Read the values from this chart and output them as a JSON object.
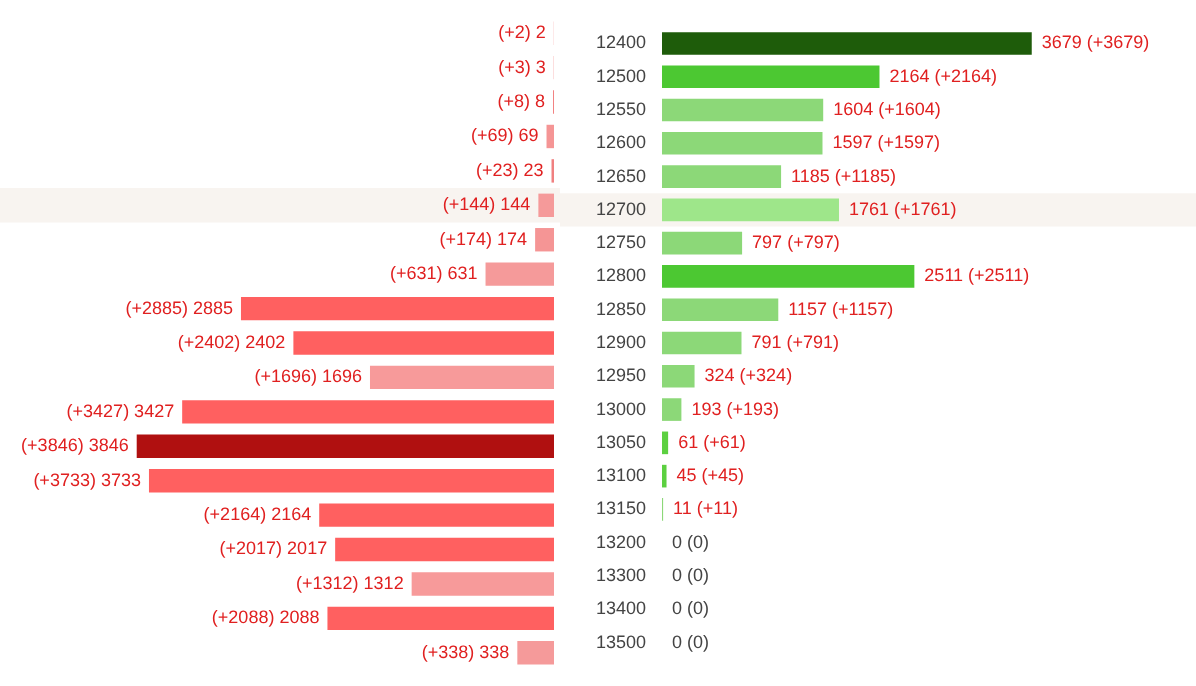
{
  "chart_data": [
    {
      "type": "bar",
      "orientation": "horizontal",
      "categories": [
        "12400",
        "12500",
        "12550",
        "12600",
        "12650",
        "12700",
        "12750",
        "12800",
        "12850",
        "12900",
        "12950",
        "13000",
        "13050",
        "13100",
        "13150",
        "13200",
        "13300",
        "13400",
        "13500"
      ],
      "values": [
        2,
        3,
        8,
        69,
        23,
        144,
        174,
        631,
        2885,
        2402,
        1696,
        3427,
        3846,
        3733,
        2164,
        2017,
        1312,
        2088,
        338
      ],
      "colors": [
        "#f59a9a",
        "#f59a9a",
        "#f07070",
        "#f59595",
        "#f08080",
        "#f59a9a",
        "#f59595",
        "#f59a9a",
        "#ff6060",
        "#ff6060",
        "#f79a9a",
        "#ff6060",
        "#b01010",
        "#ff6060",
        "#ff6060",
        "#ff6060",
        "#f79a9a",
        "#ff6060",
        "#f59a9a"
      ],
      "value_labels": [
        "(+2) 2",
        "(+3) 3",
        "(+8) 8",
        "(+69) 69",
        "(+23) 23",
        "(+144) 144",
        "(+174) 174",
        "(+631) 631",
        "(+2885) 2885",
        "(+2402) 2402",
        "(+1696) 1696",
        "(+3427) 3427",
        "(+3846) 3846",
        "(+3733) 3733",
        "(+2164) 2164",
        "(+2017) 2017",
        "(+1312) 1312",
        "(+2088) 2088",
        "(+338) 338"
      ],
      "tick_labels": false,
      "bands": [
        {
          "axis": "y",
          "from": "12700",
          "to": "12700",
          "color": "#f8f4f0"
        }
      ]
    },
    {
      "type": "bar",
      "orientation": "horizontal",
      "categories": [
        "12400",
        "12500",
        "12550",
        "12600",
        "12650",
        "12700",
        "12750",
        "12800",
        "12850",
        "12900",
        "12950",
        "13000",
        "13050",
        "13100",
        "13150",
        "13200",
        "13300",
        "13400",
        "13500"
      ],
      "values": [
        3679,
        2164,
        1604,
        1597,
        1185,
        1761,
        797,
        2511,
        1157,
        791,
        324,
        193,
        61,
        45,
        11,
        0,
        0,
        0,
        0
      ],
      "colors": [
        "#1e5c0a",
        "#4cc832",
        "#8cd878",
        "#8cd878",
        "#8cd878",
        "#9ee68a",
        "#8cd878",
        "#4cc832",
        "#8cd878",
        "#8cd878",
        "#8cd878",
        "#8cd878",
        "#5cd040",
        "#5cd040",
        "#8cd878",
        "#8cd878",
        "#8cd878",
        "#8cd878",
        "#8cd878"
      ],
      "value_labels": [
        "3679 (+3679)",
        "2164 (+2164)",
        "1604 (+1604)",
        "1597 (+1597)",
        "1185 (+1185)",
        "1761 (+1761)",
        "797 (+797)",
        "2511 (+2511)",
        "1157 (+1157)",
        "791 (+791)",
        "324 (+324)",
        "193 (+193)",
        "61 (+61)",
        "45 (+45)",
        "11 (+11)",
        "0 (0)",
        "0 (0)",
        "0 (0)",
        "0 (0)"
      ],
      "tick_labels": "y",
      "bands": [
        {
          "axis": "y",
          "from": "12700",
          "to": "12700",
          "color": "#f8f4f0"
        }
      ]
    }
  ]
}
